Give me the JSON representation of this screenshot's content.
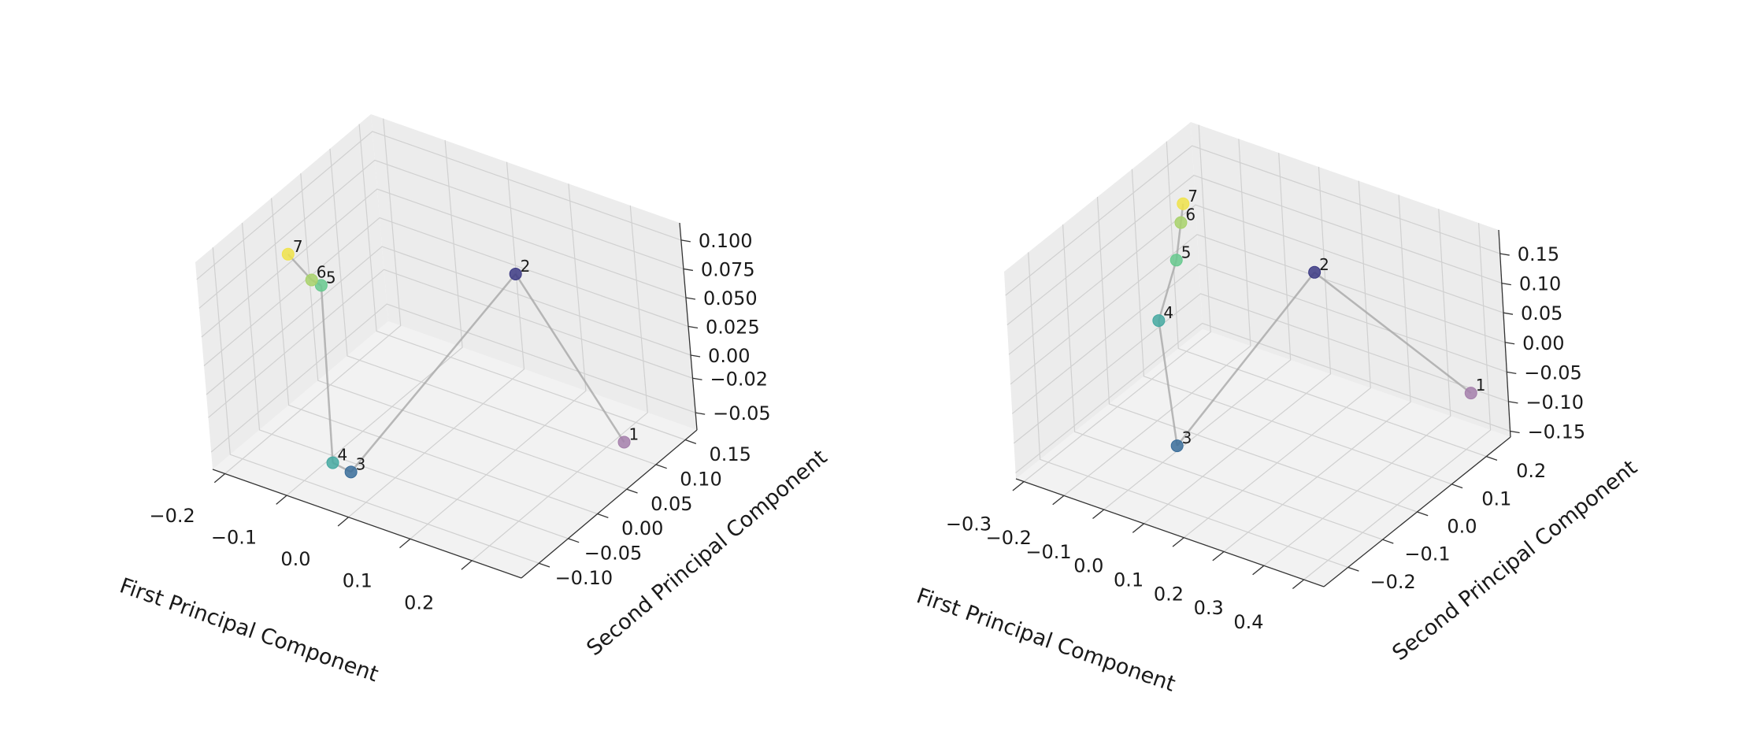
{
  "colors": {
    "pane_wall": "#ececec",
    "pane_floor": "#f2f2f2",
    "grid": "#d0d0d0",
    "edge": "#a8a8a8",
    "axis_line": "#333333",
    "point_colors": {
      "1": "#a57fab",
      "2": "#3c3a84",
      "3": "#396d9a",
      "4": "#45a9a1",
      "5": "#67c98e",
      "6": "#a8d26b",
      "7": "#f0e34a"
    }
  },
  "chart_data": [
    {
      "type": "scatter",
      "projection": "3d",
      "xlabel": "First Principal Component",
      "ylabel": "Second Principal Component",
      "zlabel": "",
      "xlim": [
        -0.22,
        0.28
      ],
      "ylim": [
        -0.13,
        0.17
      ],
      "zlim": [
        -0.065,
        0.115
      ],
      "xticks": [
        "−0.2",
        "−0.1",
        "0.0",
        "0.1",
        "0.2"
      ],
      "yticks": [
        "−0.10",
        "−0.05",
        "0.00",
        "0.05",
        "0.10",
        "0.15"
      ],
      "zticks": [
        "−0.05",
        "−0.02",
        "0.00",
        "0.025",
        "0.050",
        "0.075",
        "0.100"
      ],
      "grid": true,
      "points": [
        {
          "label": "1",
          "x": 0.23,
          "y": 0.1,
          "z": -0.055
        },
        {
          "label": "2",
          "x": 0.02,
          "y": 0.15,
          "z": 0.03
        },
        {
          "label": "3",
          "x": 0.0,
          "y": -0.12,
          "z": -0.03
        },
        {
          "label": "4",
          "x": -0.05,
          "y": -0.1,
          "z": -0.04
        },
        {
          "label": "5",
          "x": -0.17,
          "y": 0.02,
          "z": 0.04
        },
        {
          "label": "6",
          "x": -0.18,
          "y": 0.015,
          "z": 0.045
        },
        {
          "label": "7",
          "x": -0.2,
          "y": 0.0,
          "z": 0.07
        }
      ],
      "edges": [
        [
          "1",
          "2"
        ],
        [
          "2",
          "3"
        ],
        [
          "3",
          "4"
        ],
        [
          "4",
          "5"
        ],
        [
          "5",
          "6"
        ],
        [
          "6",
          "7"
        ]
      ]
    },
    {
      "type": "scatter",
      "projection": "3d",
      "xlabel": "First Principal Component",
      "ylabel": "Second Principal Component",
      "zlabel": "",
      "xlim": [
        -0.32,
        0.45
      ],
      "ylim": [
        -0.27,
        0.27
      ],
      "zlim": [
        -0.16,
        0.19
      ],
      "xticks": [
        "−0.3",
        "−0.2",
        "−0.1",
        "0.0",
        "0.1",
        "0.2",
        "0.3",
        "0.4"
      ],
      "yticks": [
        "−0.2",
        "−0.1",
        "0.0",
        "0.1",
        "0.2"
      ],
      "zticks": [
        "−0.15",
        "−0.10",
        "−0.05",
        "0.00",
        "0.05",
        "0.10",
        "0.15"
      ],
      "grid": true,
      "points": [
        {
          "label": "1",
          "x": 0.42,
          "y": 0.2,
          "z": -0.06
        },
        {
          "label": "2",
          "x": 0.02,
          "y": 0.22,
          "z": 0.04
        },
        {
          "label": "3",
          "x": 0.05,
          "y": -0.22,
          "z": -0.04
        },
        {
          "label": "4",
          "x": -0.2,
          "y": 0.02,
          "z": 0.0
        },
        {
          "label": "5",
          "x": -0.22,
          "y": 0.1,
          "z": 0.06
        },
        {
          "label": "6",
          "x": -0.24,
          "y": 0.14,
          "z": 0.1
        },
        {
          "label": "7",
          "x": -0.25,
          "y": 0.16,
          "z": 0.12
        }
      ],
      "edges": [
        [
          "1",
          "2"
        ],
        [
          "2",
          "3"
        ],
        [
          "3",
          "4"
        ],
        [
          "4",
          "5"
        ],
        [
          "5",
          "6"
        ],
        [
          "6",
          "7"
        ]
      ]
    }
  ]
}
